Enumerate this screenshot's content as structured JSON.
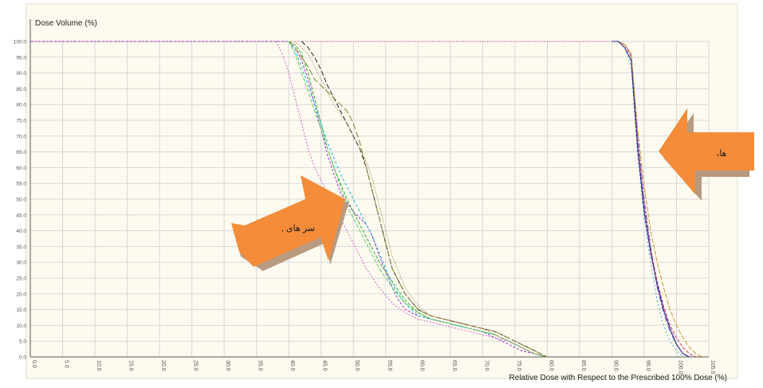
{
  "chart_data": {
    "type": "line",
    "title": "",
    "ylabel": "Dose Volume (%)",
    "xlabel": "Relative Dose with Respect to the Prescribed 100% Dose (%)",
    "xlim": [
      0,
      105
    ],
    "ylim": [
      0,
      100
    ],
    "grid": true,
    "x_ticks": [
      "0.0",
      "5.0",
      "10.0",
      "15.0",
      "20.0",
      "25.0",
      "30.0",
      "35.0",
      "40.0",
      "45.0",
      "50.0",
      "55.0",
      "60.0",
      "65.0",
      "70.0",
      "75.0",
      "80.0",
      "85.0",
      "90.0",
      "95.0",
      "100.0",
      "105.0"
    ],
    "y_ticks": [
      "0.0",
      "5.0",
      "10.0",
      "15.0",
      "20.0",
      "25.0",
      "30.0",
      "35.0",
      "40.0",
      "45.0",
      "50.0",
      "55.0",
      "60.0",
      "65.0",
      "70.0",
      "75.0",
      "80.0",
      "85.0",
      "90.0",
      "95.0",
      "100.0"
    ],
    "colors": {
      "background": "#fdfaf0",
      "grid": "#d8d8d8",
      "arrow_fill": "#f48c3a",
      "arrow_shadow": "#b89a80",
      "reference_line": "#cc4488"
    },
    "annotations": [
      {
        "text": "سر های ,",
        "target": "left curve group"
      },
      {
        "text": "ها،",
        "target": "right curve group"
      }
    ],
    "series": [
      {
        "color": "#9933cc",
        "dash": "3,2",
        "x": [
          0,
          40,
          41,
          42,
          43,
          44,
          45,
          46,
          47,
          48,
          50,
          52,
          53,
          54,
          55,
          56,
          57,
          58,
          60,
          62,
          64,
          66,
          68,
          70,
          72,
          74,
          76,
          78,
          80
        ],
        "y": [
          100,
          100,
          98,
          94,
          88,
          80,
          72,
          64,
          58,
          52,
          46,
          42,
          38,
          32,
          27,
          22,
          18,
          15,
          13,
          12,
          11,
          10,
          9,
          8,
          6,
          4,
          2,
          1,
          0
        ]
      },
      {
        "color": "#33aa33",
        "dash": "4,2",
        "x": [
          40,
          41,
          42,
          43,
          44,
          45,
          46,
          47,
          48,
          49,
          50,
          51,
          52,
          53,
          54,
          56,
          58,
          60,
          62,
          64,
          66,
          68,
          70,
          72,
          74,
          76,
          78,
          80
        ],
        "y": [
          100,
          99,
          96,
          90,
          82,
          74,
          66,
          60,
          55,
          50,
          46,
          42,
          38,
          34,
          30,
          24,
          18,
          14,
          12,
          11,
          10,
          9,
          8,
          7,
          5,
          3,
          1,
          0
        ]
      },
      {
        "color": "#222222",
        "dash": "6,3",
        "x": [
          42,
          43,
          44,
          45,
          46,
          47,
          48,
          49,
          50,
          51,
          52,
          53,
          54,
          55,
          56,
          58,
          60,
          62,
          64,
          66,
          68,
          70,
          72,
          74,
          76,
          78,
          80
        ],
        "y": [
          100,
          98,
          95,
          91,
          86,
          82,
          78,
          74,
          70,
          66,
          60,
          52,
          44,
          36,
          28,
          20,
          15,
          13,
          12,
          11,
          10,
          9,
          8,
          6,
          4,
          2,
          0
        ]
      },
      {
        "color": "#00bcd4",
        "dash": "3,3",
        "x": [
          40,
          41,
          42,
          43,
          44,
          45,
          46,
          47,
          48,
          49,
          50,
          51,
          52,
          53,
          54,
          55,
          56,
          58,
          60,
          62,
          64,
          66,
          68,
          70,
          72,
          74,
          76,
          78,
          80
        ],
        "y": [
          100,
          97,
          92,
          86,
          80,
          74,
          68,
          63,
          58,
          54,
          50,
          46,
          42,
          38,
          33,
          28,
          23,
          17,
          13,
          12,
          11,
          10,
          9,
          8,
          7,
          5,
          3,
          1,
          0
        ]
      },
      {
        "color": "#888833",
        "dash": "8,3",
        "x": [
          40,
          41,
          42,
          43,
          44,
          45,
          46,
          47,
          48,
          49,
          50,
          51,
          52,
          53,
          54,
          55,
          56,
          58,
          60,
          62,
          64,
          66,
          68,
          70,
          72,
          74,
          76,
          78,
          80
        ],
        "y": [
          100,
          98,
          95,
          92,
          88,
          86,
          84,
          82,
          80,
          78,
          74,
          68,
          60,
          52,
          44,
          36,
          28,
          20,
          15,
          13,
          12,
          11,
          10,
          9,
          8,
          6,
          4,
          2,
          0
        ]
      },
      {
        "color": "#cc66cc",
        "dash": "2,2",
        "x": [
          38,
          39,
          40,
          41,
          42,
          43,
          44,
          45,
          46,
          47,
          48,
          49,
          50,
          52,
          54,
          56,
          58,
          60,
          62,
          64,
          66,
          68,
          70,
          72,
          74,
          76,
          78,
          80
        ],
        "y": [
          100,
          96,
          90,
          82,
          74,
          66,
          60,
          56,
          52,
          48,
          44,
          40,
          36,
          28,
          22,
          17,
          14,
          12,
          11,
          10,
          9,
          8,
          7,
          6,
          5,
          3,
          1,
          0
        ]
      },
      {
        "color": "#66cc66",
        "dash": "5,2",
        "x": [
          40,
          41,
          42,
          43,
          44,
          45,
          46,
          47,
          48,
          49,
          50,
          51,
          52,
          53,
          54,
          56,
          58,
          60,
          62,
          64,
          66,
          68,
          70,
          72,
          74,
          76,
          78,
          80
        ],
        "y": [
          100,
          96,
          90,
          84,
          78,
          72,
          66,
          60,
          54,
          48,
          44,
          40,
          36,
          32,
          28,
          22,
          17,
          14,
          12,
          11,
          10,
          9,
          8,
          7,
          5,
          3,
          1,
          0
        ]
      },
      {
        "color": "#996633",
        "dash": "1,2",
        "x": [
          41,
          42,
          43,
          44,
          45,
          46,
          47,
          48,
          49,
          50,
          51,
          52,
          53,
          54,
          55,
          56,
          58,
          60,
          62,
          64,
          66,
          68,
          70,
          72,
          74,
          76,
          78,
          80
        ],
        "y": [
          100,
          98,
          96,
          92,
          88,
          84,
          80,
          77,
          74,
          70,
          66,
          62,
          56,
          48,
          40,
          32,
          22,
          16,
          13,
          12,
          11,
          10,
          9,
          7,
          5,
          3,
          1,
          0
        ]
      },
      {
        "color": "#6666cc",
        "dash": "7,2,2,2",
        "x": [
          90,
          91,
          92,
          93,
          94,
          95,
          96,
          97,
          98,
          99,
          100,
          101,
          102
        ],
        "y": [
          100,
          100,
          99,
          96,
          70,
          50,
          35,
          22,
          14,
          8,
          4,
          1,
          0
        ]
      },
      {
        "color": "#cc3366",
        "dash": "4,2",
        "x": [
          90,
          91,
          92,
          93,
          94,
          95,
          96,
          97,
          98,
          99,
          100,
          101,
          102,
          103
        ],
        "y": [
          100,
          100,
          99,
          95,
          68,
          48,
          34,
          24,
          16,
          10,
          6,
          3,
          1,
          0
        ]
      },
      {
        "color": "#33aacc",
        "dash": "2,3",
        "x": [
          90,
          91,
          92,
          93,
          94,
          95,
          96,
          97,
          98,
          99,
          100,
          101
        ],
        "y": [
          100,
          100,
          98,
          92,
          64,
          44,
          30,
          18,
          10,
          5,
          2,
          0
        ]
      },
      {
        "color": "#cc9933",
        "dash": "6,2",
        "x": [
          90,
          91,
          92,
          93,
          94,
          95,
          96,
          97,
          98,
          99,
          100,
          101,
          102,
          103,
          104
        ],
        "y": [
          100,
          100,
          99,
          96,
          72,
          54,
          40,
          30,
          22,
          15,
          10,
          6,
          3,
          1,
          0
        ]
      },
      {
        "color": "#222288",
        "dash": "",
        "x": [
          90,
          91,
          92,
          93,
          94,
          95,
          96,
          97,
          98,
          99,
          100,
          101,
          102
        ],
        "y": [
          100,
          100,
          98,
          94,
          66,
          46,
          33,
          23,
          15,
          9,
          4,
          1,
          0
        ]
      }
    ]
  }
}
